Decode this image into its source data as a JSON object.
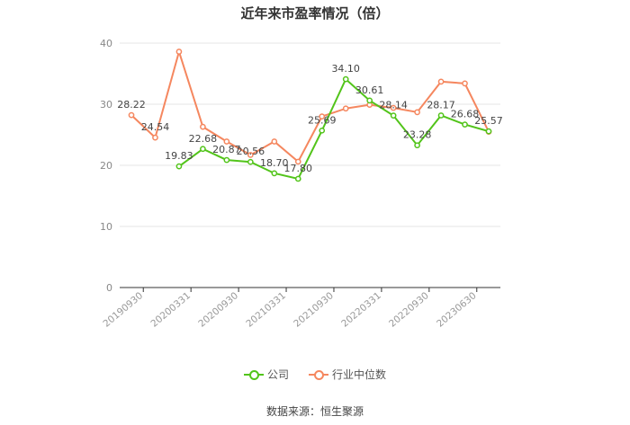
{
  "chart_data": {
    "type": "line",
    "title": "近年来市盈率情况（倍）",
    "ylim": [
      0,
      40
    ],
    "yticks": [
      0,
      10,
      20,
      30,
      40
    ],
    "x_tick_labels": [
      "20190930",
      "20200331",
      "20200930",
      "20210331",
      "20210930",
      "20220331",
      "20220930",
      "20230630"
    ],
    "x_tick_positions": [
      0,
      2,
      4,
      6,
      8,
      10,
      12,
      14
    ],
    "x_count": 16,
    "series": [
      {
        "name": "公司",
        "color": "#52c41a",
        "values": [
          null,
          null,
          19.83,
          22.68,
          20.87,
          20.56,
          18.7,
          17.8,
          25.69,
          34.1,
          30.61,
          28.14,
          23.28,
          28.17,
          26.68,
          25.57
        ],
        "labels": [
          null,
          null,
          "19.83",
          "22.68",
          "20.87",
          "20.56",
          "18.70",
          "17.80",
          "25.69",
          "34.10",
          "30.61",
          "28.14",
          "23.28",
          "28.17",
          "26.68",
          "25.57"
        ]
      },
      {
        "name": "行业中位数",
        "color": "#f5875f",
        "values": [
          28.22,
          24.54,
          38.6,
          26.3,
          23.9,
          21.7,
          23.9,
          20.6,
          28.0,
          29.3,
          29.9,
          29.4,
          28.7,
          33.7,
          33.4,
          25.5
        ],
        "labels": [
          "28.22",
          "24.54",
          null,
          null,
          null,
          null,
          null,
          null,
          null,
          null,
          null,
          null,
          null,
          null,
          null,
          null
        ]
      }
    ],
    "legend": "bottom-center",
    "grid": true
  },
  "legend": {
    "company": "公司",
    "industry": "行业中位数"
  },
  "source": "数据来源：恒生聚源"
}
